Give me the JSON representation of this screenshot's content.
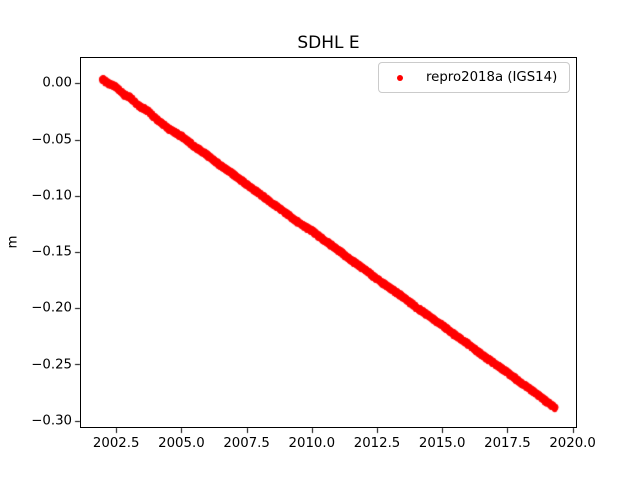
{
  "figure": {
    "background_color": "#ffffff",
    "text_color": "#000000"
  },
  "chart_data": {
    "type": "scatter",
    "title": "SDHL E",
    "xlabel": "",
    "ylabel": "m",
    "grid": false,
    "legend_position": "upper right",
    "legend": [
      {
        "label": "repro2018a (IGS14)",
        "color": "#ff0000",
        "marker": "dot"
      }
    ],
    "xlim": [
      2001.11,
      2020.17
    ],
    "ylim": [
      -0.3065,
      0.0235
    ],
    "xticks": [
      2002.5,
      2005.0,
      2007.5,
      2010.0,
      2012.5,
      2015.0,
      2017.5,
      2020.0
    ],
    "xtick_labels": [
      "2002.5",
      "2005.0",
      "2007.5",
      "2010.0",
      "2012.5",
      "2015.0",
      "2017.5",
      "2020.0"
    ],
    "yticks": [
      0.0,
      -0.05,
      -0.1,
      -0.15,
      -0.2,
      -0.25,
      -0.3
    ],
    "ytick_labels": [
      "0.00",
      "−0.05",
      "−0.10",
      "−0.15",
      "−0.20",
      "−0.25",
      "−0.30"
    ],
    "series": [
      {
        "name": "repro2018a (IGS14)",
        "color": "#ff0000",
        "marker": ".",
        "points": [
          [
            2001.95,
            0.004
          ],
          [
            2002.2,
            0.0
          ],
          [
            2002.5,
            -0.003
          ],
          [
            2002.8,
            -0.01
          ],
          [
            2003.0,
            -0.012
          ],
          [
            2003.3,
            -0.019
          ],
          [
            2003.7,
            -0.024
          ],
          [
            2004.0,
            -0.031
          ],
          [
            2004.5,
            -0.04
          ],
          [
            2005.0,
            -0.047
          ],
          [
            2005.5,
            -0.056
          ],
          [
            2006.0,
            -0.064
          ],
          [
            2006.5,
            -0.073
          ],
          [
            2007.0,
            -0.081
          ],
          [
            2007.5,
            -0.09
          ],
          [
            2008.0,
            -0.098
          ],
          [
            2008.5,
            -0.107
          ],
          [
            2009.0,
            -0.115
          ],
          [
            2009.5,
            -0.124
          ],
          [
            2010.0,
            -0.131
          ],
          [
            2010.5,
            -0.14
          ],
          [
            2011.0,
            -0.148
          ],
          [
            2011.5,
            -0.157
          ],
          [
            2012.0,
            -0.165
          ],
          [
            2012.5,
            -0.174
          ],
          [
            2013.0,
            -0.182
          ],
          [
            2013.5,
            -0.19
          ],
          [
            2014.0,
            -0.199
          ],
          [
            2014.5,
            -0.207
          ],
          [
            2015.0,
            -0.215
          ],
          [
            2015.5,
            -0.224
          ],
          [
            2016.0,
            -0.232
          ],
          [
            2016.5,
            -0.241
          ],
          [
            2017.0,
            -0.249
          ],
          [
            2017.5,
            -0.257
          ],
          [
            2018.0,
            -0.266
          ],
          [
            2018.5,
            -0.274
          ],
          [
            2019.0,
            -0.283
          ],
          [
            2019.35,
            -0.289
          ]
        ]
      }
    ]
  }
}
